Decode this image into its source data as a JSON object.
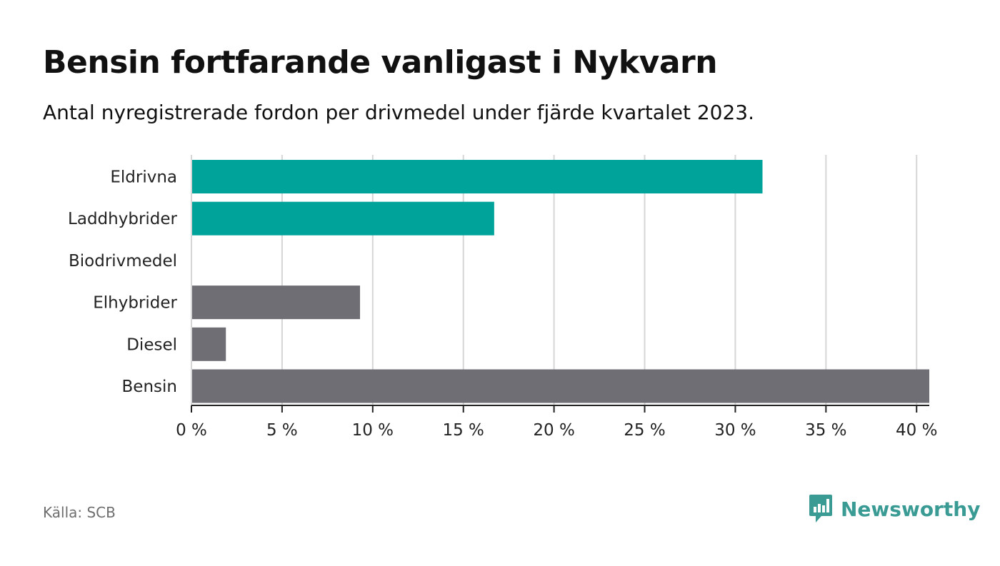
{
  "header": {
    "title": "Bensin fortfarande vanligast i Nykvarn",
    "subtitle": "Antal nyregistrerade fordon per drivmedel under fjärde kvartalet 2023."
  },
  "footer": {
    "source": "Källa: SCB",
    "brand": "Newsworthy"
  },
  "colors": {
    "highlight": "#00a39a",
    "neutral": "#6f6e74",
    "grid": "#d6d6d6",
    "axis": "#222222",
    "brand": "#3a9b95"
  },
  "chart_data": {
    "type": "bar",
    "orientation": "horizontal",
    "title": "Bensin fortfarande vanligast i Nykvarn",
    "subtitle": "Antal nyregistrerade fordon per drivmedel under fjärde kvartalet 2023.",
    "categories": [
      "Eldrivna",
      "Laddhybrider",
      "Biodrivmedel",
      "Elhybrider",
      "Diesel",
      "Bensin"
    ],
    "values": [
      31.5,
      16.7,
      0,
      9.3,
      1.9,
      40.7
    ],
    "bar_colors": [
      "#00a39a",
      "#00a39a",
      "#6f6e74",
      "#6f6e74",
      "#6f6e74",
      "#6f6e74"
    ],
    "unit": "%",
    "xlim": [
      0,
      40.7
    ],
    "xticks": [
      0,
      5,
      10,
      15,
      20,
      25,
      30,
      35,
      40
    ],
    "xtick_labels": [
      "0 %",
      "5 %",
      "10 %",
      "15 %",
      "20 %",
      "25 %",
      "30 %",
      "35 %",
      "40 %"
    ],
    "xlabel": "",
    "ylabel": "",
    "grid": true,
    "legend": "none"
  }
}
